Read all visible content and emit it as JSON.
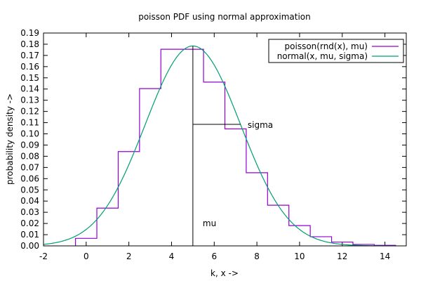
{
  "chart_data": {
    "type": "line",
    "title": "poisson PDF using normal approximation",
    "xlabel": "k, x ->",
    "ylabel": "probability density ->",
    "xlim": [
      -2,
      15
    ],
    "ylim": [
      0,
      0.19
    ],
    "xticks": [
      -2,
      0,
      2,
      4,
      6,
      8,
      10,
      12,
      14
    ],
    "yticks": [
      0,
      0.01,
      0.02,
      0.03,
      0.04,
      0.05,
      0.06,
      0.07,
      0.08,
      0.09,
      0.1,
      0.11,
      0.12,
      0.13,
      0.14,
      0.15,
      0.16,
      0.17,
      0.18,
      0.19
    ],
    "xtick_labels": [
      "-2",
      "0",
      "2",
      "4",
      "6",
      "8",
      "10",
      "12",
      "14"
    ],
    "ytick_labels": [
      "0.00",
      "0.01",
      "0.02",
      "0.03",
      "0.04",
      "0.05",
      "0.06",
      "0.07",
      "0.08",
      "0.09",
      "0.10",
      "0.11",
      "0.12",
      "0.13",
      "0.14",
      "0.15",
      "0.16",
      "0.17",
      "0.18",
      "0.19"
    ],
    "legend_position": "top-right",
    "grid": false,
    "series": [
      {
        "name": "poisson(rnd(x), mu)",
        "color": "#9400d3",
        "style": "steps",
        "k": [
          0,
          1,
          2,
          3,
          4,
          5,
          6,
          7,
          8,
          9,
          10,
          11,
          12,
          13,
          14
        ],
        "values": [
          0.0067,
          0.0337,
          0.0842,
          0.1404,
          0.1755,
          0.1755,
          0.1462,
          0.1044,
          0.0653,
          0.0363,
          0.0181,
          0.0082,
          0.0034,
          0.0013,
          0.0005
        ]
      },
      {
        "name": "normal(x, mu, sigma)",
        "color": "#009e73",
        "style": "curve",
        "mu": 5,
        "sigma": 2.236,
        "x_range": [
          -2,
          14.5
        ]
      }
    ],
    "annotations": [
      {
        "text": "mu",
        "x": 5
      },
      {
        "text": "sigma",
        "x_from": 5,
        "x_to": 7.236,
        "y": 0.1085
      }
    ]
  }
}
